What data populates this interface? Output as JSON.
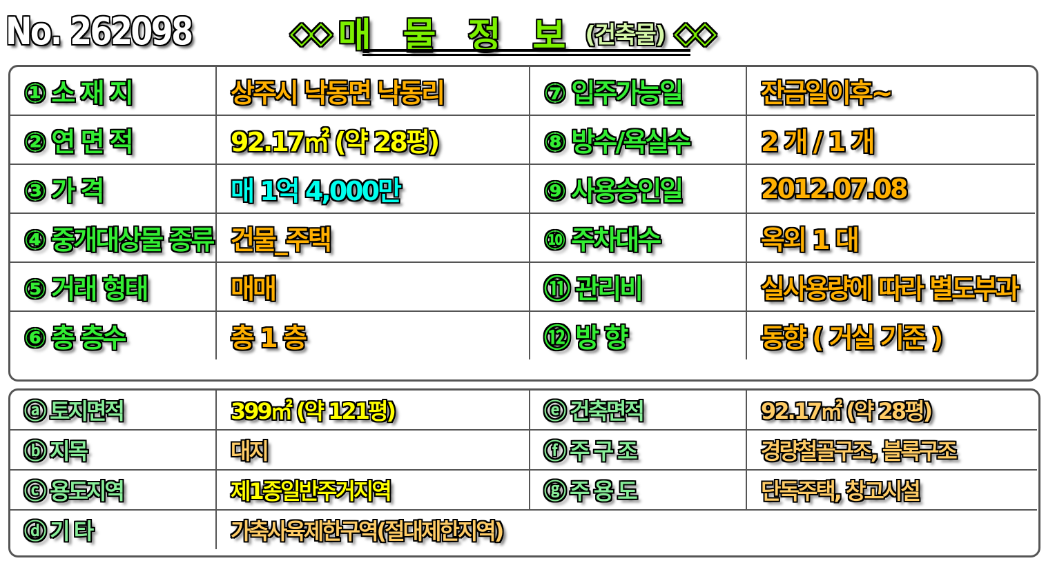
{
  "header": {
    "doc_no": "No. 262098",
    "title": "매 물 정 보",
    "subtitle": "(건축물)",
    "deco_left": "◇◇",
    "deco_right": "◇◇"
  },
  "colors": {
    "label_green": "#33ee33",
    "label_green_light": "#88ee99",
    "value_orange": "#ffb000",
    "value_yellow": "#ffff00",
    "value_cyan": "#00ffee",
    "value_light_orange": "#ffcc66",
    "title_green": "#7cf000"
  },
  "main_table": [
    {
      "l1": "① 소 재 지",
      "v1": "상주시 낙동면 낙동리",
      "l2": "⑦ 입주가능일",
      "v2": "잔금일이후~"
    },
    {
      "l1": "② 연 면 적",
      "v1": "92.17㎡ (약 28평)",
      "l2": "⑧ 방수/욕실수",
      "v2": "2 개 / 1 개"
    },
    {
      "l1": "③ 가 격",
      "v1": "매 1억 4,000만",
      "l2": "⑨ 사용승인일",
      "v2": "2012.07.08"
    },
    {
      "l1": "④ 중개대상물 종류",
      "v1": "건물_주택",
      "l2": "⑩ 주차대수",
      "v2": "옥외 1 대"
    },
    {
      "l1": "⑤ 거래 형태",
      "v1": "매매",
      "l2": "⑪ 관리비",
      "v2": "실사용량에 따라 별도부과"
    },
    {
      "l1": "⑥ 총 층수",
      "v1": "총 1 층",
      "l2": "⑫ 방 향",
      "v2": "동향 ( 거실 기준 )"
    }
  ],
  "sub_table": [
    {
      "l1": "ⓐ 토지면적",
      "v1": "399㎡ (약 121평)",
      "l2": "ⓔ 건축면적",
      "v2": "92.17㎡ (약 28평)"
    },
    {
      "l1": "ⓑ 지목",
      "v1": "대지",
      "l2": "ⓕ 주 구 조",
      "v2": "경량철골구조, 블록구조"
    },
    {
      "l1": "ⓒ 용도지역",
      "v1": "제1종일반주거지역",
      "l2": "ⓖ 주 용 도",
      "v2": "단독주택, 창고시설"
    },
    {
      "l1": "ⓓ 기 타",
      "v1": "가축사육제한구역(절대제한지역)"
    }
  ]
}
